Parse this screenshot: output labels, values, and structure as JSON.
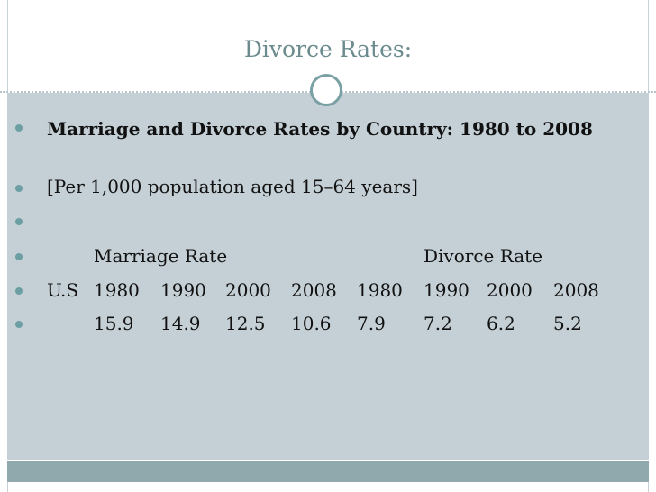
{
  "title": "Divorce Rates:",
  "bullets": [
    "Marriage and Divorce Rates by Country: 1980 to 2008",
    "[Per 1,000 population aged 15–64 years]"
  ],
  "table": {
    "groups": [
      "Marriage Rate",
      "Divorce Rate"
    ],
    "country": "U.S",
    "years": [
      "1980",
      "1990",
      "2000",
      "2008",
      "1980",
      "1990",
      "2000",
      "2008"
    ],
    "values": [
      15.9,
      14.9,
      12.5,
      10.6,
      7.9,
      7.2,
      6.2,
      5.2
    ]
  }
}
